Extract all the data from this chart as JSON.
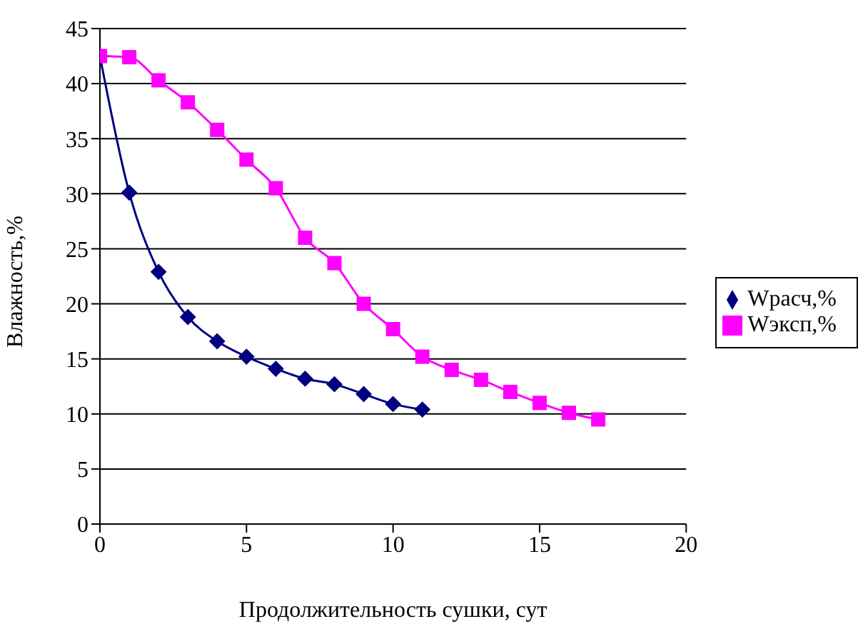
{
  "chart_data": {
    "type": "line",
    "xlabel": "Продолжительность сушки, сут",
    "ylabel": "Влажность,%",
    "xlim": [
      0,
      20
    ],
    "xticks": [
      0,
      5,
      10,
      15,
      20
    ],
    "ylim": [
      0,
      45
    ],
    "yticks": [
      0,
      5,
      10,
      15,
      20,
      25,
      30,
      35,
      40,
      45
    ],
    "grid": "y",
    "legend": "right",
    "series": [
      {
        "name": "Wрасч,%",
        "color": "#000080",
        "marker": "diamond",
        "x": [
          0,
          1,
          2,
          3,
          4,
          5,
          6,
          7,
          8,
          9,
          10,
          11
        ],
        "values": [
          42.5,
          30.1,
          22.9,
          18.8,
          16.6,
          15.2,
          14.1,
          13.2,
          12.7,
          11.8,
          10.9,
          10.4
        ]
      },
      {
        "name": "Wэксп,%",
        "color": "#ff00ff",
        "marker": "square",
        "x": [
          0,
          1,
          2,
          3,
          4,
          5,
          6,
          7,
          8,
          9,
          10,
          11,
          12,
          13,
          14,
          15,
          16,
          17
        ],
        "values": [
          42.5,
          42.4,
          40.3,
          38.3,
          35.8,
          33.1,
          30.5,
          26,
          23.7,
          20,
          17.7,
          15.2,
          14,
          13.1,
          12,
          11,
          10.1,
          9.5
        ]
      }
    ]
  }
}
